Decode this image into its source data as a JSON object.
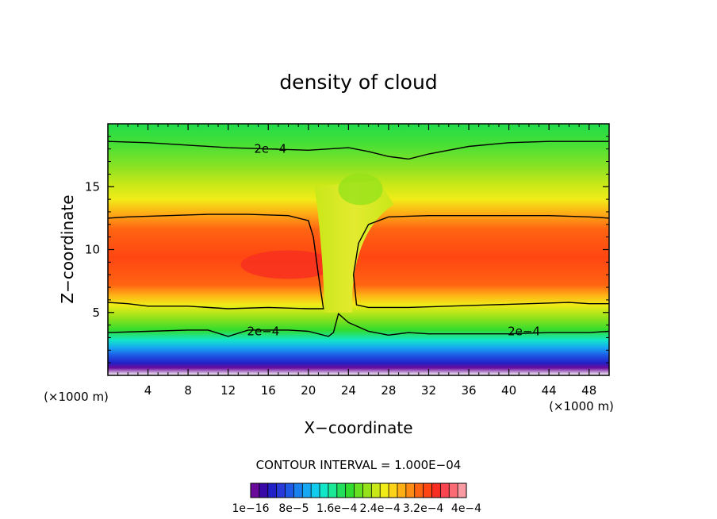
{
  "chart_data": {
    "type": "heatmap",
    "title": "density of cloud",
    "xlabel": "X−coordinate",
    "ylabel": "Z−coordinate",
    "x_unit_left": "(×1000 m)",
    "x_unit_right": "(×1000 m)",
    "xlim": [
      0,
      50
    ],
    "ylim": [
      0,
      20
    ],
    "x_ticks": [
      4,
      8,
      12,
      16,
      20,
      24,
      28,
      32,
      36,
      40,
      44,
      48
    ],
    "x_tick_labels": [
      "4",
      "8",
      "12",
      "16",
      "20",
      "24",
      "28",
      "32",
      "36",
      "40",
      "44",
      "48"
    ],
    "y_ticks": [
      5,
      10,
      15
    ],
    "y_tick_labels": [
      "5",
      "10",
      "15"
    ],
    "contour_interval_text": "CONTOUR INTERVAL = 1.000E−04",
    "contour_line_label": "2e−4",
    "colorbar": {
      "colors": [
        "#6a0a9a",
        "#3a0aa8",
        "#2222c8",
        "#2a3ad8",
        "#1e5ae6",
        "#1a82ee",
        "#16a8f2",
        "#12ccf0",
        "#12e6c8",
        "#1ae896",
        "#22de5a",
        "#32dc2e",
        "#66e020",
        "#96e21a",
        "#c8e818",
        "#f0ec18",
        "#ffd418",
        "#ffae16",
        "#ff8a14",
        "#ff6412",
        "#ff4612",
        "#f82e22",
        "#fa4450",
        "#fa6a74",
        "#fa9aa2"
      ],
      "tick_labels": [
        "1e−16",
        "8e−5",
        "1.6e−4",
        "2.4e−4",
        "3.2e−4",
        "4e−4"
      ],
      "tick_values": [
        1e-16,
        8e-05,
        0.00016,
        0.00024,
        0.00032,
        0.0004
      ],
      "min": 1e-16,
      "max": 0.0004
    },
    "contour_lines": [
      {
        "name": "2e-4 upper",
        "x": [
          0,
          4,
          8,
          12,
          16,
          20,
          24,
          26,
          28,
          30,
          32,
          36,
          40,
          44,
          48,
          50
        ],
        "y": [
          18.6,
          18.5,
          18.3,
          18.1,
          18.0,
          17.9,
          18.1,
          17.8,
          17.4,
          17.2,
          17.6,
          18.2,
          18.5,
          18.6,
          18.6,
          18.6
        ]
      },
      {
        "name": "2e-4 left-core",
        "x": [
          0,
          2,
          6,
          10,
          14,
          18,
          20,
          20.5,
          21.0,
          21.5,
          20.0,
          16,
          12,
          8,
          4,
          2,
          0
        ],
        "y": [
          12.5,
          12.6,
          12.7,
          12.8,
          12.8,
          12.7,
          12.3,
          11.0,
          8.0,
          5.3,
          5.3,
          5.4,
          5.3,
          5.5,
          5.5,
          5.7,
          5.8
        ]
      },
      {
        "name": "2e-4 right-core",
        "x": [
          50,
          48,
          44,
          40,
          36,
          32,
          28,
          26,
          25.0,
          24.5,
          24.8,
          26,
          30,
          34,
          38,
          42,
          46,
          48,
          50
        ],
        "y": [
          12.5,
          12.6,
          12.7,
          12.7,
          12.7,
          12.7,
          12.6,
          12.0,
          10.5,
          8.0,
          5.6,
          5.4,
          5.4,
          5.5,
          5.6,
          5.7,
          5.8,
          5.7,
          5.7
        ]
      },
      {
        "name": "2e-4 lower",
        "x": [
          0,
          4,
          8,
          10,
          12,
          14,
          16,
          18,
          20,
          22,
          22.5,
          23,
          24,
          26,
          28,
          30,
          32,
          36,
          40,
          44,
          48,
          50
        ],
        "y": [
          3.4,
          3.5,
          3.6,
          3.6,
          3.1,
          3.6,
          3.6,
          3.6,
          3.5,
          3.1,
          3.4,
          4.9,
          4.2,
          3.5,
          3.2,
          3.4,
          3.3,
          3.3,
          3.3,
          3.4,
          3.4,
          3.5
        ]
      }
    ]
  }
}
